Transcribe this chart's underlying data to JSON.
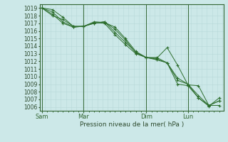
{
  "xlabel": "Pression niveau de la mer( hPa )",
  "bg_color": "#cce8e8",
  "grid_minor_color": "#b8d8d8",
  "grid_major_color": "#336633",
  "line_color": "#2d6e2d",
  "marker_color": "#2d6e2d",
  "ylim": [
    1005.5,
    1019.5
  ],
  "yticks": [
    1006,
    1007,
    1008,
    1009,
    1010,
    1011,
    1012,
    1013,
    1014,
    1015,
    1016,
    1017,
    1018,
    1019
  ],
  "xtick_labels": [
    "Sam",
    "Mar",
    "Dim",
    "Lun"
  ],
  "xtick_positions": [
    0,
    2.0,
    5.0,
    7.0
  ],
  "xlim": [
    -0.1,
    8.7
  ],
  "num_x_minor": 0.25,
  "series": [
    {
      "x": [
        0,
        0.5,
        1.0,
        1.5,
        2.0,
        2.5,
        3.0,
        3.5,
        4.0,
        4.5,
        5.0,
        5.5,
        6.0,
        6.5,
        7.0,
        7.5,
        8.0,
        8.5
      ],
      "y": [
        1019.0,
        1018.5,
        1017.2,
        1016.5,
        1016.6,
        1017.2,
        1017.1,
        1016.5,
        1015.0,
        1013.3,
        1012.5,
        1012.5,
        1011.8,
        1009.0,
        1008.8,
        1007.2,
        1006.2,
        1006.2
      ]
    },
    {
      "x": [
        0,
        0.5,
        1.0,
        1.5,
        2.0,
        2.5,
        3.0,
        3.5,
        4.0,
        4.5,
        5.0,
        5.5,
        6.0,
        6.5,
        7.0,
        7.5,
        8.0,
        8.5
      ],
      "y": [
        1019.0,
        1018.0,
        1017.5,
        1016.6,
        1016.6,
        1017.0,
        1017.2,
        1016.2,
        1014.8,
        1013.1,
        1012.5,
        1012.4,
        1013.8,
        1011.5,
        1008.9,
        1008.8,
        1006.2,
        1006.8
      ]
    },
    {
      "x": [
        0,
        0.5,
        1.0,
        1.5,
        2.0,
        2.5,
        3.0,
        3.5,
        4.0,
        4.5,
        5.0,
        5.5,
        6.0,
        6.5,
        7.0,
        7.5,
        8.0,
        8.5
      ],
      "y": [
        1019.0,
        1018.8,
        1017.8,
        1016.6,
        1016.6,
        1017.0,
        1017.2,
        1015.8,
        1014.5,
        1013.2,
        1012.5,
        1012.3,
        1011.8,
        1009.5,
        1009.0,
        1007.5,
        1006.2,
        1006.8
      ]
    },
    {
      "x": [
        0,
        0.5,
        1.0,
        1.5,
        2.0,
        2.5,
        3.0,
        3.5,
        4.0,
        4.5,
        5.0,
        5.5,
        6.0,
        6.5,
        7.0,
        7.5,
        8.0,
        8.5
      ],
      "y": [
        1019.0,
        1018.2,
        1017.0,
        1016.5,
        1016.6,
        1017.1,
        1017.0,
        1015.5,
        1014.2,
        1013.0,
        1012.5,
        1012.2,
        1011.8,
        1009.8,
        1009.0,
        1007.2,
        1006.1,
        1007.2
      ]
    }
  ]
}
